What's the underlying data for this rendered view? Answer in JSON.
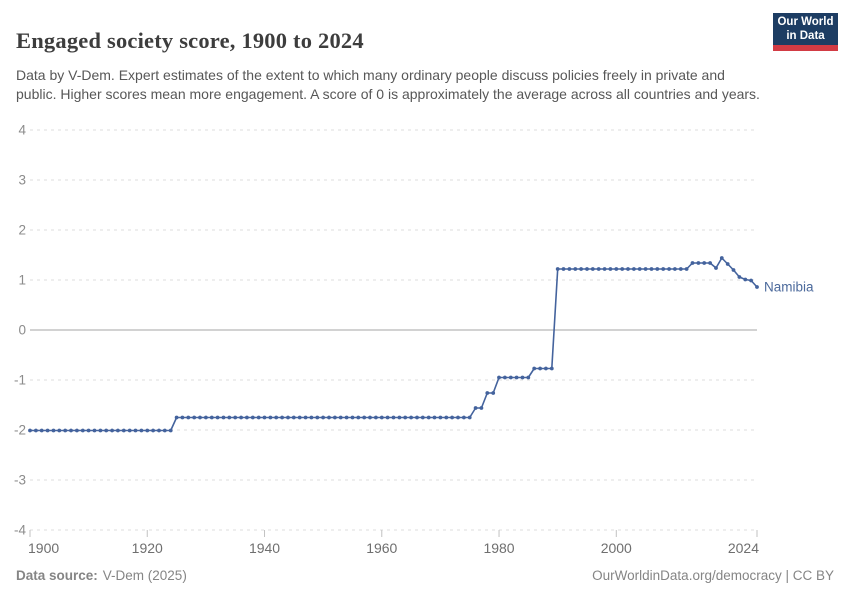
{
  "header": {
    "title": "Engaged society score, 1900 to 2024",
    "subtitle": "Data by V-Dem. Expert estimates of the extent to which many ordinary people discuss policies freely in private and public. Higher scores mean more engagement. A score of 0 is approximately the average across all countries and years.",
    "logo": {
      "line1": "Our World",
      "line2": "in Data",
      "bg_color": "#1d3d63",
      "accent_color": "#d23b44"
    }
  },
  "chart_data": {
    "type": "line",
    "title": "Engaged society score, 1900 to 2024",
    "xlabel": "",
    "ylabel": "",
    "x_range": [
      1900,
      2024
    ],
    "ylim": [
      -4,
      4
    ],
    "y_ticks": [
      4,
      3,
      2,
      1,
      0,
      -1,
      -2,
      -3,
      -4
    ],
    "x_ticks": [
      1900,
      1920,
      1940,
      1960,
      1980,
      2000,
      2024
    ],
    "grid": "horizontal-dashed",
    "zero_line": true,
    "markers": "dot-per-year",
    "legend_position": "end-of-line-label",
    "series": [
      {
        "name": "Namibia",
        "color": "#44639d",
        "label_color": "#4c6a9c",
        "runs": [
          {
            "from": 1900,
            "to": 1924,
            "value": -2.01
          },
          {
            "from": 1925,
            "to": 1975,
            "value": -1.75
          },
          {
            "from": 1976,
            "to": 1977,
            "value": -1.56
          },
          {
            "from": 1978,
            "to": 1979,
            "value": -1.26
          },
          {
            "from": 1980,
            "to": 1985,
            "value": -0.95
          },
          {
            "from": 1986,
            "to": 1989,
            "value": -0.77
          },
          {
            "from": 1990,
            "to": 2012,
            "value": 1.22
          },
          {
            "from": 2013,
            "to": 2016,
            "value": 1.34
          },
          {
            "from": 2017,
            "to": 2017,
            "value": 1.24
          },
          {
            "from": 2018,
            "to": 2018,
            "value": 1.44
          },
          {
            "from": 2019,
            "to": 2019,
            "value": 1.32
          },
          {
            "from": 2020,
            "to": 2020,
            "value": 1.2
          },
          {
            "from": 2021,
            "to": 2021,
            "value": 1.06
          },
          {
            "from": 2022,
            "to": 2022,
            "value": 1.01
          },
          {
            "from": 2023,
            "to": 2023,
            "value": 0.99
          },
          {
            "from": 2024,
            "to": 2024,
            "value": 0.86
          }
        ]
      }
    ],
    "colors": {
      "grid": "#dcdcdc",
      "zero_line": "#a6a6a6",
      "tick_mark": "#c2c2c2",
      "y_label_text": "#8c8c8c",
      "x_label_text": "#6f6f6f"
    }
  },
  "footer": {
    "source_label": "Data source:",
    "source_value": "V-Dem (2025)",
    "credit": "OurWorldinData.org/democracy | CC BY"
  }
}
